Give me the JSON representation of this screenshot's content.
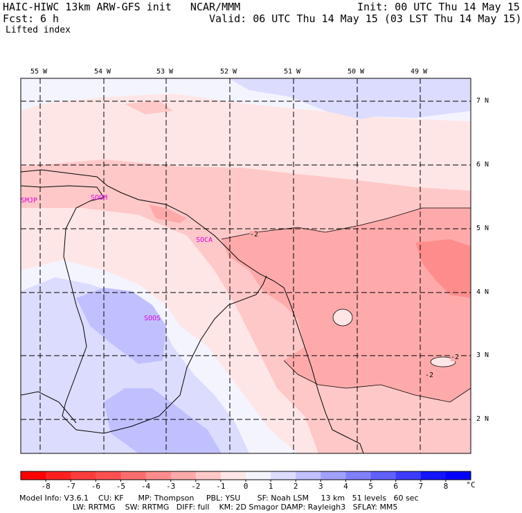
{
  "header": {
    "title_left": "HAIC-HIWC 13km ARW-GFS init   NCAR/MMM",
    "init": "Init: 00 UTC Thu 14 May 15",
    "fcst_label": "Fcst:",
    "fcst_value": "6 h",
    "valid": "Valid: 06 UTC Thu 14 May 15 (03 LST Thu 14 May 15)",
    "field": "Lifted index"
  },
  "map": {
    "longitudes": [
      "55 W",
      "54 W",
      "53 W",
      "52 W",
      "51 W",
      "50 W",
      "49 W"
    ],
    "latitudes": [
      "7 N",
      "6 N",
      "5 N",
      "4 N",
      "3 N",
      "2 N"
    ],
    "stations": [
      "SMJP",
      "SOGM",
      "SOCA",
      "SOOS"
    ],
    "contour_labels": [
      "-2",
      "-2",
      "-2"
    ]
  },
  "colorbar": {
    "values": [
      "-8",
      "-7",
      "-6",
      "-5",
      "-4",
      "-3",
      "-2",
      "-1",
      "0",
      "1",
      "2",
      "3",
      "4",
      "5",
      "6",
      "7",
      "8"
    ],
    "unit": "°C",
    "colors": [
      "#ff0000",
      "#ff2020",
      "#ff3c3c",
      "#ff5050",
      "#ff6e6e",
      "#ff8c8c",
      "#ffaaaa",
      "#ffc8c8",
      "#ffe6e6",
      "#f4f4ff",
      "#dcdcff",
      "#c0c0ff",
      "#a0a0ff",
      "#8080ff",
      "#6060ff",
      "#3c3cff",
      "#1414ff",
      "#0000ff"
    ]
  },
  "footer": {
    "line1": "Model Info: V3.6.1    CU: KF      MP: Thompson     PBL: YSU       SF: Noah LSM     13 km   51 levels   60 sec",
    "line2": "                      LW: RRTMG    SW: RRTMG   DIFF: full    KM: 2D Smagor DAMP: Rayleigh3   SFLAY: MM5"
  }
}
